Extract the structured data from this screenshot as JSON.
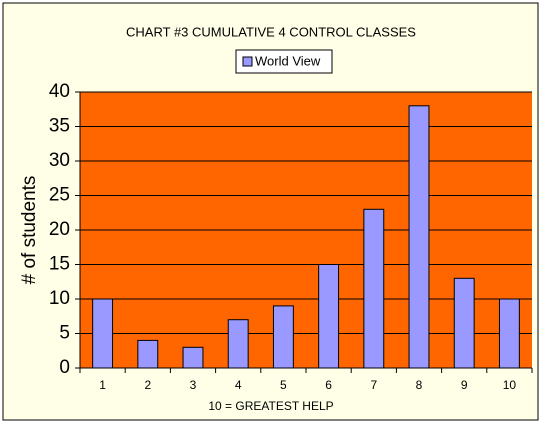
{
  "chart_data": {
    "type": "bar",
    "title": "CHART #3 CUMULATIVE 4 CONTROL CLASSES",
    "x_label": "10 = GREATEST HELP",
    "y_label": "# of students",
    "categories": [
      "1",
      "2",
      "3",
      "4",
      "5",
      "6",
      "7",
      "8",
      "9",
      "10"
    ],
    "series": [
      {
        "name": "World View",
        "color": "#9999ff",
        "values": [
          10,
          4,
          3,
          7,
          9,
          15,
          23,
          38,
          13,
          10
        ]
      }
    ],
    "ylim": [
      0,
      40
    ],
    "yticks": [
      0,
      5,
      10,
      15,
      20,
      25,
      30,
      35,
      40
    ],
    "grid": true,
    "legend": "top"
  }
}
